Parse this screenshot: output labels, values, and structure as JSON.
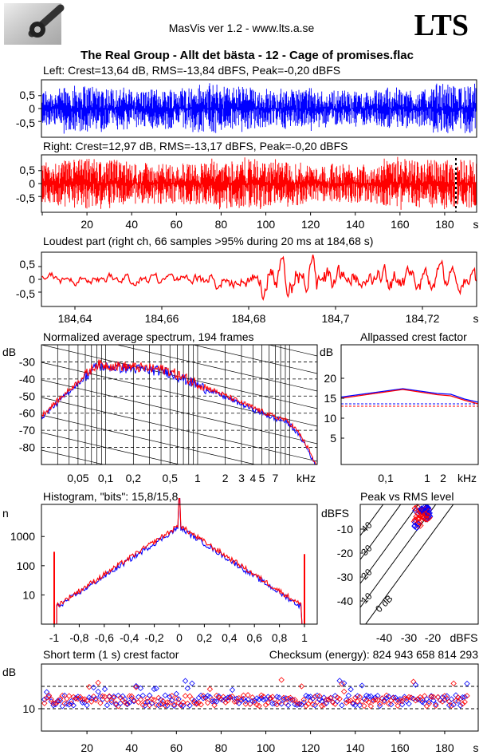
{
  "header": {
    "app_title": "MasVis ver 1.2 - www.lts.a.se",
    "logo_text": "LTS",
    "file_title": "The Real Group - Allt det bästa - 12 - Cage of promises.flac"
  },
  "colors": {
    "left": "#0000ff",
    "right": "#ff0000",
    "grid": "#000000"
  },
  "waveform_left": {
    "label": "Left: Crest=13,64 dB, RMS=-13,84 dBFS, Peak=-0,20 dBFS",
    "yticks": [
      "0,5",
      "0",
      "-0,5"
    ]
  },
  "waveform_right": {
    "label": "Right: Crest=12,97 dB, RMS=-13,17 dBFS, Peak=-0,20 dBFS",
    "yticks": [
      "0,5",
      "0",
      "-0,5"
    ],
    "xticks": [
      "20",
      "40",
      "60",
      "80",
      "100",
      "120",
      "140",
      "160",
      "180"
    ],
    "xunit": "s"
  },
  "loudest": {
    "label": "Loudest part (right ch, 66 samples >95% during 20 ms at 184,68 s)",
    "yticks": [
      "0,5",
      "0",
      "-0,5"
    ],
    "xticks": [
      "184,64",
      "184,66",
      "184,68",
      "184,7",
      "184,72"
    ],
    "xunit": "s"
  },
  "spectrum": {
    "label": "Normalized average spectrum, 194 frames",
    "ylabel": "dB",
    "yticks": [
      "-30",
      "-40",
      "-50",
      "-60",
      "-70",
      "-80"
    ],
    "xticks": [
      "0,05",
      "0,1",
      "0,2",
      "0,5",
      "1",
      "2",
      "3",
      "4",
      "5",
      "7"
    ],
    "xunit": "kHz"
  },
  "crest": {
    "label": "Allpassed crest factor",
    "ylabel": "dB",
    "yticks": [
      "20",
      "15",
      "10",
      "5"
    ],
    "xticks": [
      "0,1",
      "1",
      "2"
    ],
    "xunit": "kHz"
  },
  "histogram": {
    "label": "Histogram, \"bits\": 15,8/15,8",
    "ylabel": "n",
    "yticks": [
      "1000",
      "100",
      "10"
    ],
    "xticks": [
      "-1",
      "-0,8",
      "-0,6",
      "-0,4",
      "-0,2",
      "0",
      "0,2",
      "0,4",
      "0,6",
      "0,8",
      "1"
    ]
  },
  "peak_rms": {
    "label": "Peak vs RMS level",
    "ylabel": "dBFS",
    "yticks": [
      "-10",
      "-20",
      "-30",
      "-40"
    ],
    "xticks": [
      "-40",
      "-30",
      "-20"
    ],
    "xunit": "dBFS",
    "diag_labels": [
      "40",
      "30",
      "20",
      "10",
      "0 dB"
    ]
  },
  "short_crest": {
    "label": "Short term (1 s) crest factor",
    "checksum": "Checksum (energy):   824 943 658 814 293",
    "ylabel": "dB",
    "yticks": [
      "10"
    ],
    "xticks": [
      "20",
      "40",
      "60",
      "80",
      "100",
      "120",
      "140",
      "160",
      "180"
    ],
    "xunit": "s"
  }
}
